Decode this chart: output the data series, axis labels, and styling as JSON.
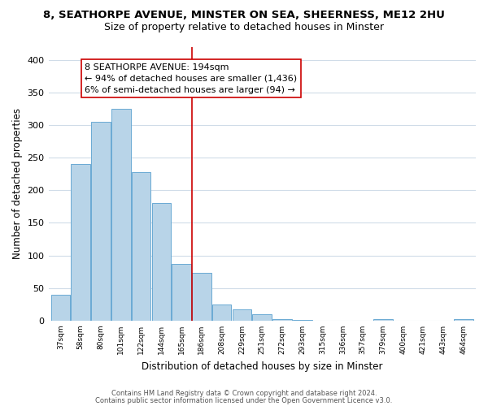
{
  "title_line1": "8, SEATHORPE AVENUE, MINSTER ON SEA, SHEERNESS, ME12 2HU",
  "title_line2": "Size of property relative to detached houses in Minster",
  "xlabel": "Distribution of detached houses by size in Minster",
  "ylabel": "Number of detached properties",
  "bar_labels": [
    "37sqm",
    "58sqm",
    "80sqm",
    "101sqm",
    "122sqm",
    "144sqm",
    "165sqm",
    "186sqm",
    "208sqm",
    "229sqm",
    "251sqm",
    "272sqm",
    "293sqm",
    "315sqm",
    "336sqm",
    "357sqm",
    "379sqm",
    "400sqm",
    "421sqm",
    "443sqm",
    "464sqm"
  ],
  "bar_heights": [
    40,
    240,
    305,
    325,
    228,
    180,
    87,
    73,
    25,
    17,
    10,
    2,
    1,
    0,
    0,
    0,
    2,
    0,
    0,
    0,
    2
  ],
  "bar_color": "#b8d4e8",
  "bar_edge_color": "#6aaad4",
  "ylim": [
    0,
    420
  ],
  "yticks": [
    0,
    50,
    100,
    150,
    200,
    250,
    300,
    350,
    400
  ],
  "annotation_title": "8 SEATHORPE AVENUE: 194sqm",
  "annotation_line1": "← 94% of detached houses are smaller (1,436)",
  "annotation_line2": "6% of semi-detached houses are larger (94) →",
  "vline_color": "#cc0000",
  "box_edge_color": "#cc0000",
  "footer_line1": "Contains HM Land Registry data © Crown copyright and database right 2024.",
  "footer_line2": "Contains public sector information licensed under the Open Government Licence v3.0.",
  "bg_color": "#ffffff",
  "grid_color": "#d0dce8",
  "title1_fontsize": 9.5,
  "title2_fontsize": 9.0
}
